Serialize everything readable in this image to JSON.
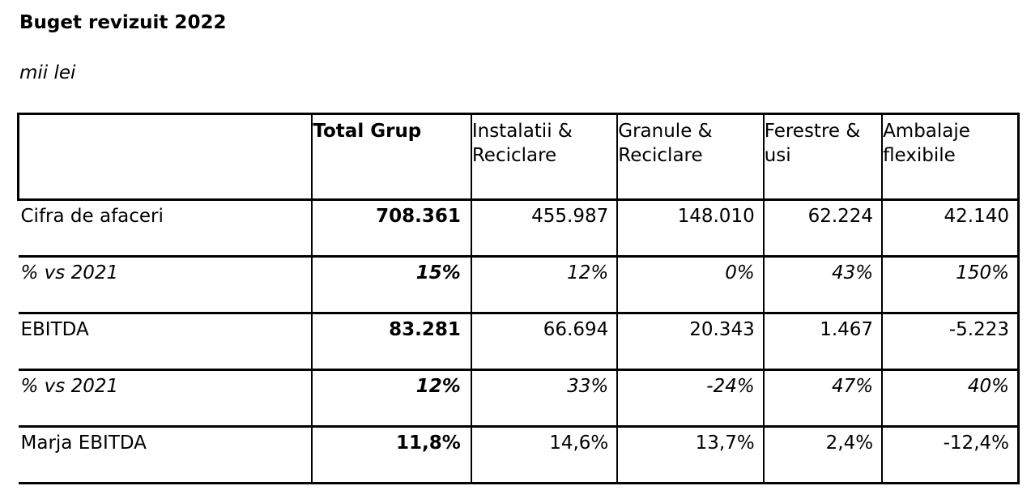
{
  "title": "Buget revizuit 2022",
  "unit": "mii lei",
  "table": {
    "headers": [
      "",
      "Total Grup",
      "Instalatii & Reciclare",
      "Granule & Reciclare",
      "Ferestre & usi",
      "Ambalaje flexibile"
    ],
    "rows": [
      {
        "label": "Cifra de afaceri",
        "values": [
          "708.361",
          "455.987",
          "148.010",
          "62.224",
          "42.140"
        ]
      },
      {
        "label": "% vs 2021",
        "values": [
          "15%",
          "12%",
          "0%",
          "43%",
          "150%"
        ]
      },
      {
        "label": "EBITDA",
        "values": [
          "83.281",
          "66.694",
          "20.343",
          "1.467",
          "-5.223"
        ]
      },
      {
        "label": "% vs 2021",
        "values": [
          "12%",
          "33%",
          "-24%",
          "47%",
          "40%"
        ]
      },
      {
        "label": "Marja EBITDA",
        "values": [
          "11,8%",
          "14,6%",
          "13,7%",
          "2,4%",
          "-12,4%"
        ]
      }
    ]
  }
}
